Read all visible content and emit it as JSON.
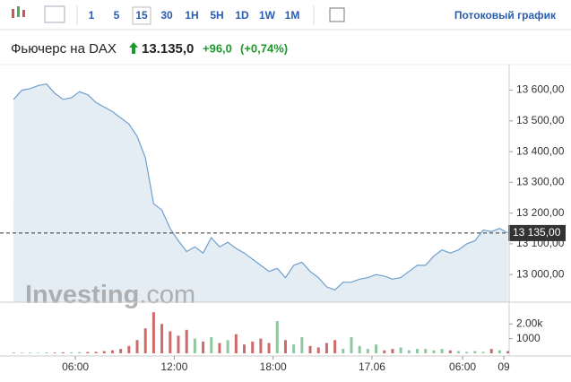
{
  "toolbar": {
    "intervals": [
      "1",
      "5",
      "15",
      "30",
      "1H",
      "5H",
      "1D",
      "1W",
      "1M"
    ],
    "active": 2,
    "link": "Потоковый график"
  },
  "header": {
    "name": "Фьючерс на DAX",
    "price": "13.135,0",
    "change": "+96,0",
    "change_pct": "(+0,74%)"
  },
  "chart_data": {
    "type": "area",
    "color": "#6f9fcc",
    "fill": "#e4edf4",
    "x": [
      0,
      2,
      4,
      6,
      8,
      10,
      12,
      14,
      16,
      18,
      20,
      22,
      24,
      26,
      28,
      30,
      32,
      34,
      36,
      38,
      40,
      42,
      44,
      46,
      48,
      50,
      52,
      54,
      56,
      58,
      60,
      62,
      64,
      66,
      68,
      70,
      72,
      74,
      76,
      78,
      80,
      82,
      84,
      86,
      88,
      90,
      92,
      94,
      96,
      98,
      100,
      102,
      104,
      106,
      108,
      110,
      112,
      114,
      116,
      118,
      120
    ],
    "values": [
      13570,
      13600,
      13605,
      13615,
      13620,
      13590,
      13570,
      13575,
      13595,
      13585,
      13560,
      13545,
      13530,
      13510,
      13490,
      13450,
      13380,
      13230,
      13210,
      13150,
      13110,
      13075,
      13090,
      13070,
      13120,
      13090,
      13105,
      13085,
      13070,
      13050,
      13030,
      13010,
      13020,
      12990,
      13030,
      13040,
      13010,
      12990,
      12960,
      12950,
      12975,
      12975,
      12985,
      12990,
      13000,
      12995,
      12985,
      12990,
      13010,
      13030,
      13030,
      13060,
      13080,
      13070,
      13080,
      13100,
      13110,
      13145,
      13140,
      13150,
      13135
    ],
    "xlim": [
      -3.3,
      120.3
    ],
    "xticks": [
      {
        "value": 15,
        "label": "06:00"
      },
      {
        "value": 39,
        "label": "12:00"
      },
      {
        "value": 63,
        "label": "18:00"
      },
      {
        "value": 87,
        "label": "17.06"
      },
      {
        "value": 109,
        "label": "06:00"
      },
      {
        "value": 119,
        "label": "09"
      }
    ],
    "ylim": [
      12910,
      13660
    ],
    "yticks": [
      {
        "value": 13000,
        "label": "13 000,00"
      },
      {
        "value": 13100,
        "label": "13 100,00"
      },
      {
        "value": 13200,
        "label": "13 200,00"
      },
      {
        "value": 13300,
        "label": "13 300,00"
      },
      {
        "value": 13400,
        "label": "13 400,00"
      },
      {
        "value": 13500,
        "label": "13 500,00"
      },
      {
        "value": 13600,
        "label": "13 600,00"
      }
    ],
    "last": {
      "value": 13135,
      "label": "13 135,00"
    },
    "watermark": {
      "brand": "Investing",
      "suffix": ".com"
    },
    "volume": {
      "values": [
        60,
        40,
        50,
        40,
        60,
        50,
        70,
        60,
        80,
        90,
        100,
        150,
        200,
        300,
        500,
        900,
        1700,
        2800,
        2000,
        1500,
        1200,
        1600,
        1000,
        800,
        1100,
        700,
        900,
        1300,
        600,
        800,
        1000,
        700,
        2200,
        900,
        600,
        1100,
        500,
        400,
        700,
        900,
        300,
        1100,
        500,
        300,
        600,
        200,
        300,
        400,
        200,
        300,
        300,
        200,
        300,
        200,
        150,
        100,
        150,
        100,
        300,
        200,
        150
      ],
      "up_color": "#8fc7a0",
      "down_color": "#cf6a6a",
      "ylim": [
        0,
        3300
      ],
      "yticks": [
        1000,
        {
          "value": 2000,
          "label": "2.00k"
        }
      ]
    }
  }
}
